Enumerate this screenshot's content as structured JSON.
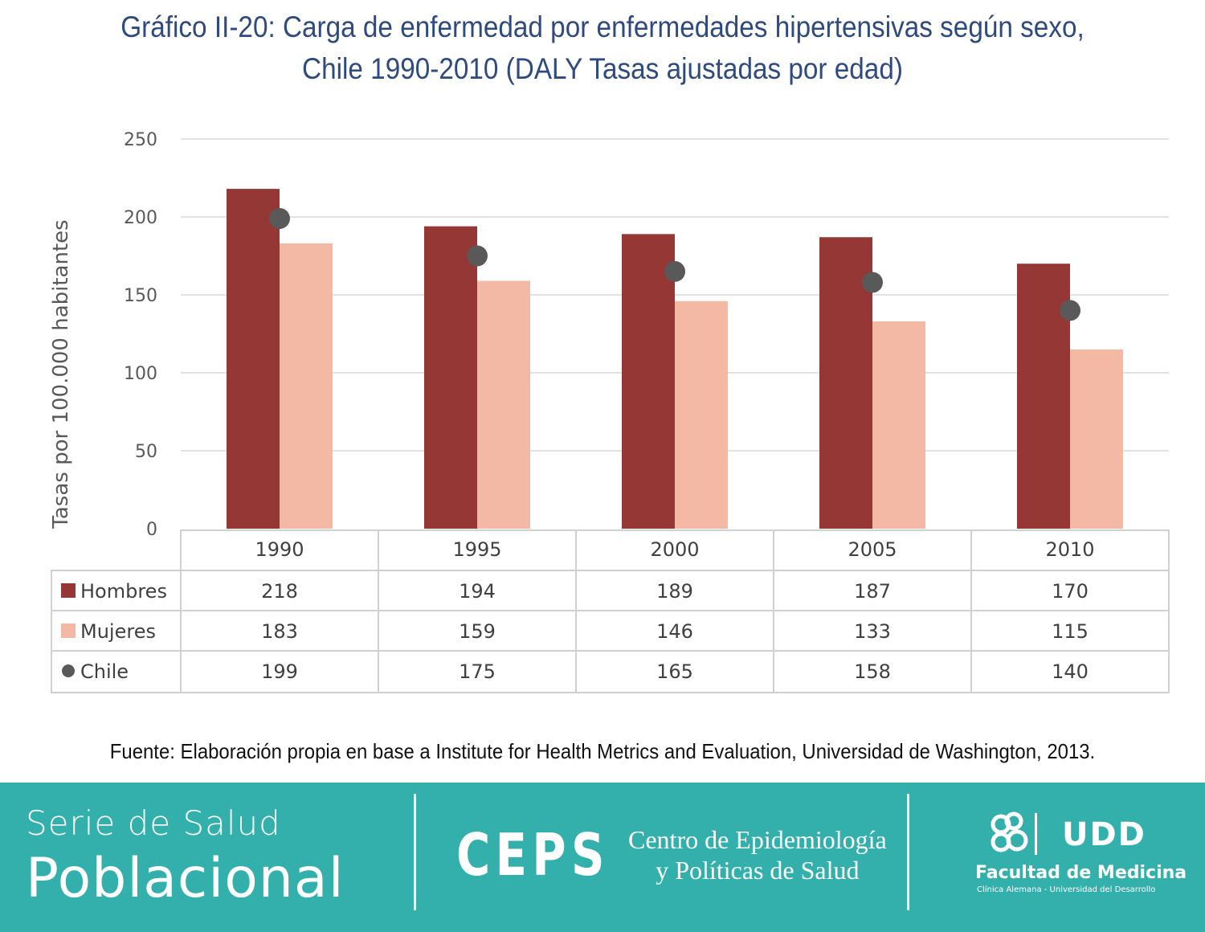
{
  "header": {
    "title_line1": "Gráfico II-20: Carga de enfermedad por enfermedades hipertensivas según sexo,",
    "title_line2": "Chile 1990-2010 (DALY Tasas ajustadas por edad)"
  },
  "chart_data": {
    "type": "bar",
    "title": "Gráfico II-20: Carga de enfermedad por enfermedades hipertensivas según sexo, Chile 1990-2010 (DALY Tasas ajustadas por edad)",
    "xlabel": "",
    "ylabel": "Tasas por 100.000 habitantes",
    "ylim": [
      0,
      250
    ],
    "yticks": [
      0,
      50,
      100,
      150,
      200,
      250
    ],
    "grid": true,
    "legend": "data-table-below",
    "categories": [
      "1990",
      "1995",
      "2000",
      "2005",
      "2010"
    ],
    "series": [
      {
        "name": "Hombres",
        "type": "bar",
        "color": "#953735",
        "values": [
          218,
          194,
          189,
          187,
          170
        ]
      },
      {
        "name": "Mujeres",
        "type": "bar",
        "color": "#f4b9a4",
        "values": [
          183,
          159,
          146,
          133,
          115
        ]
      },
      {
        "name": "Chile",
        "type": "marker",
        "color": "#595959",
        "values": [
          199,
          175,
          165,
          158,
          140
        ]
      }
    ]
  },
  "source": "Fuente: Elaboración propia en base a Institute for Health Metrics and Evaluation, Universidad de Washington, 2013.",
  "footer": {
    "series_line1": "Serie de Salud",
    "series_line2": "Poblacional",
    "ceps_logo": "CEPS",
    "ceps_name_line1": "Centro de Epidemiología",
    "ceps_name_line2": "y Políticas de Salud",
    "udd_logo": "UDD",
    "faculty": "Facultad de Medicina",
    "faculty_sub": "Clínica Alemana - Universidad del Desarrollo",
    "color": "#33b0ab"
  }
}
